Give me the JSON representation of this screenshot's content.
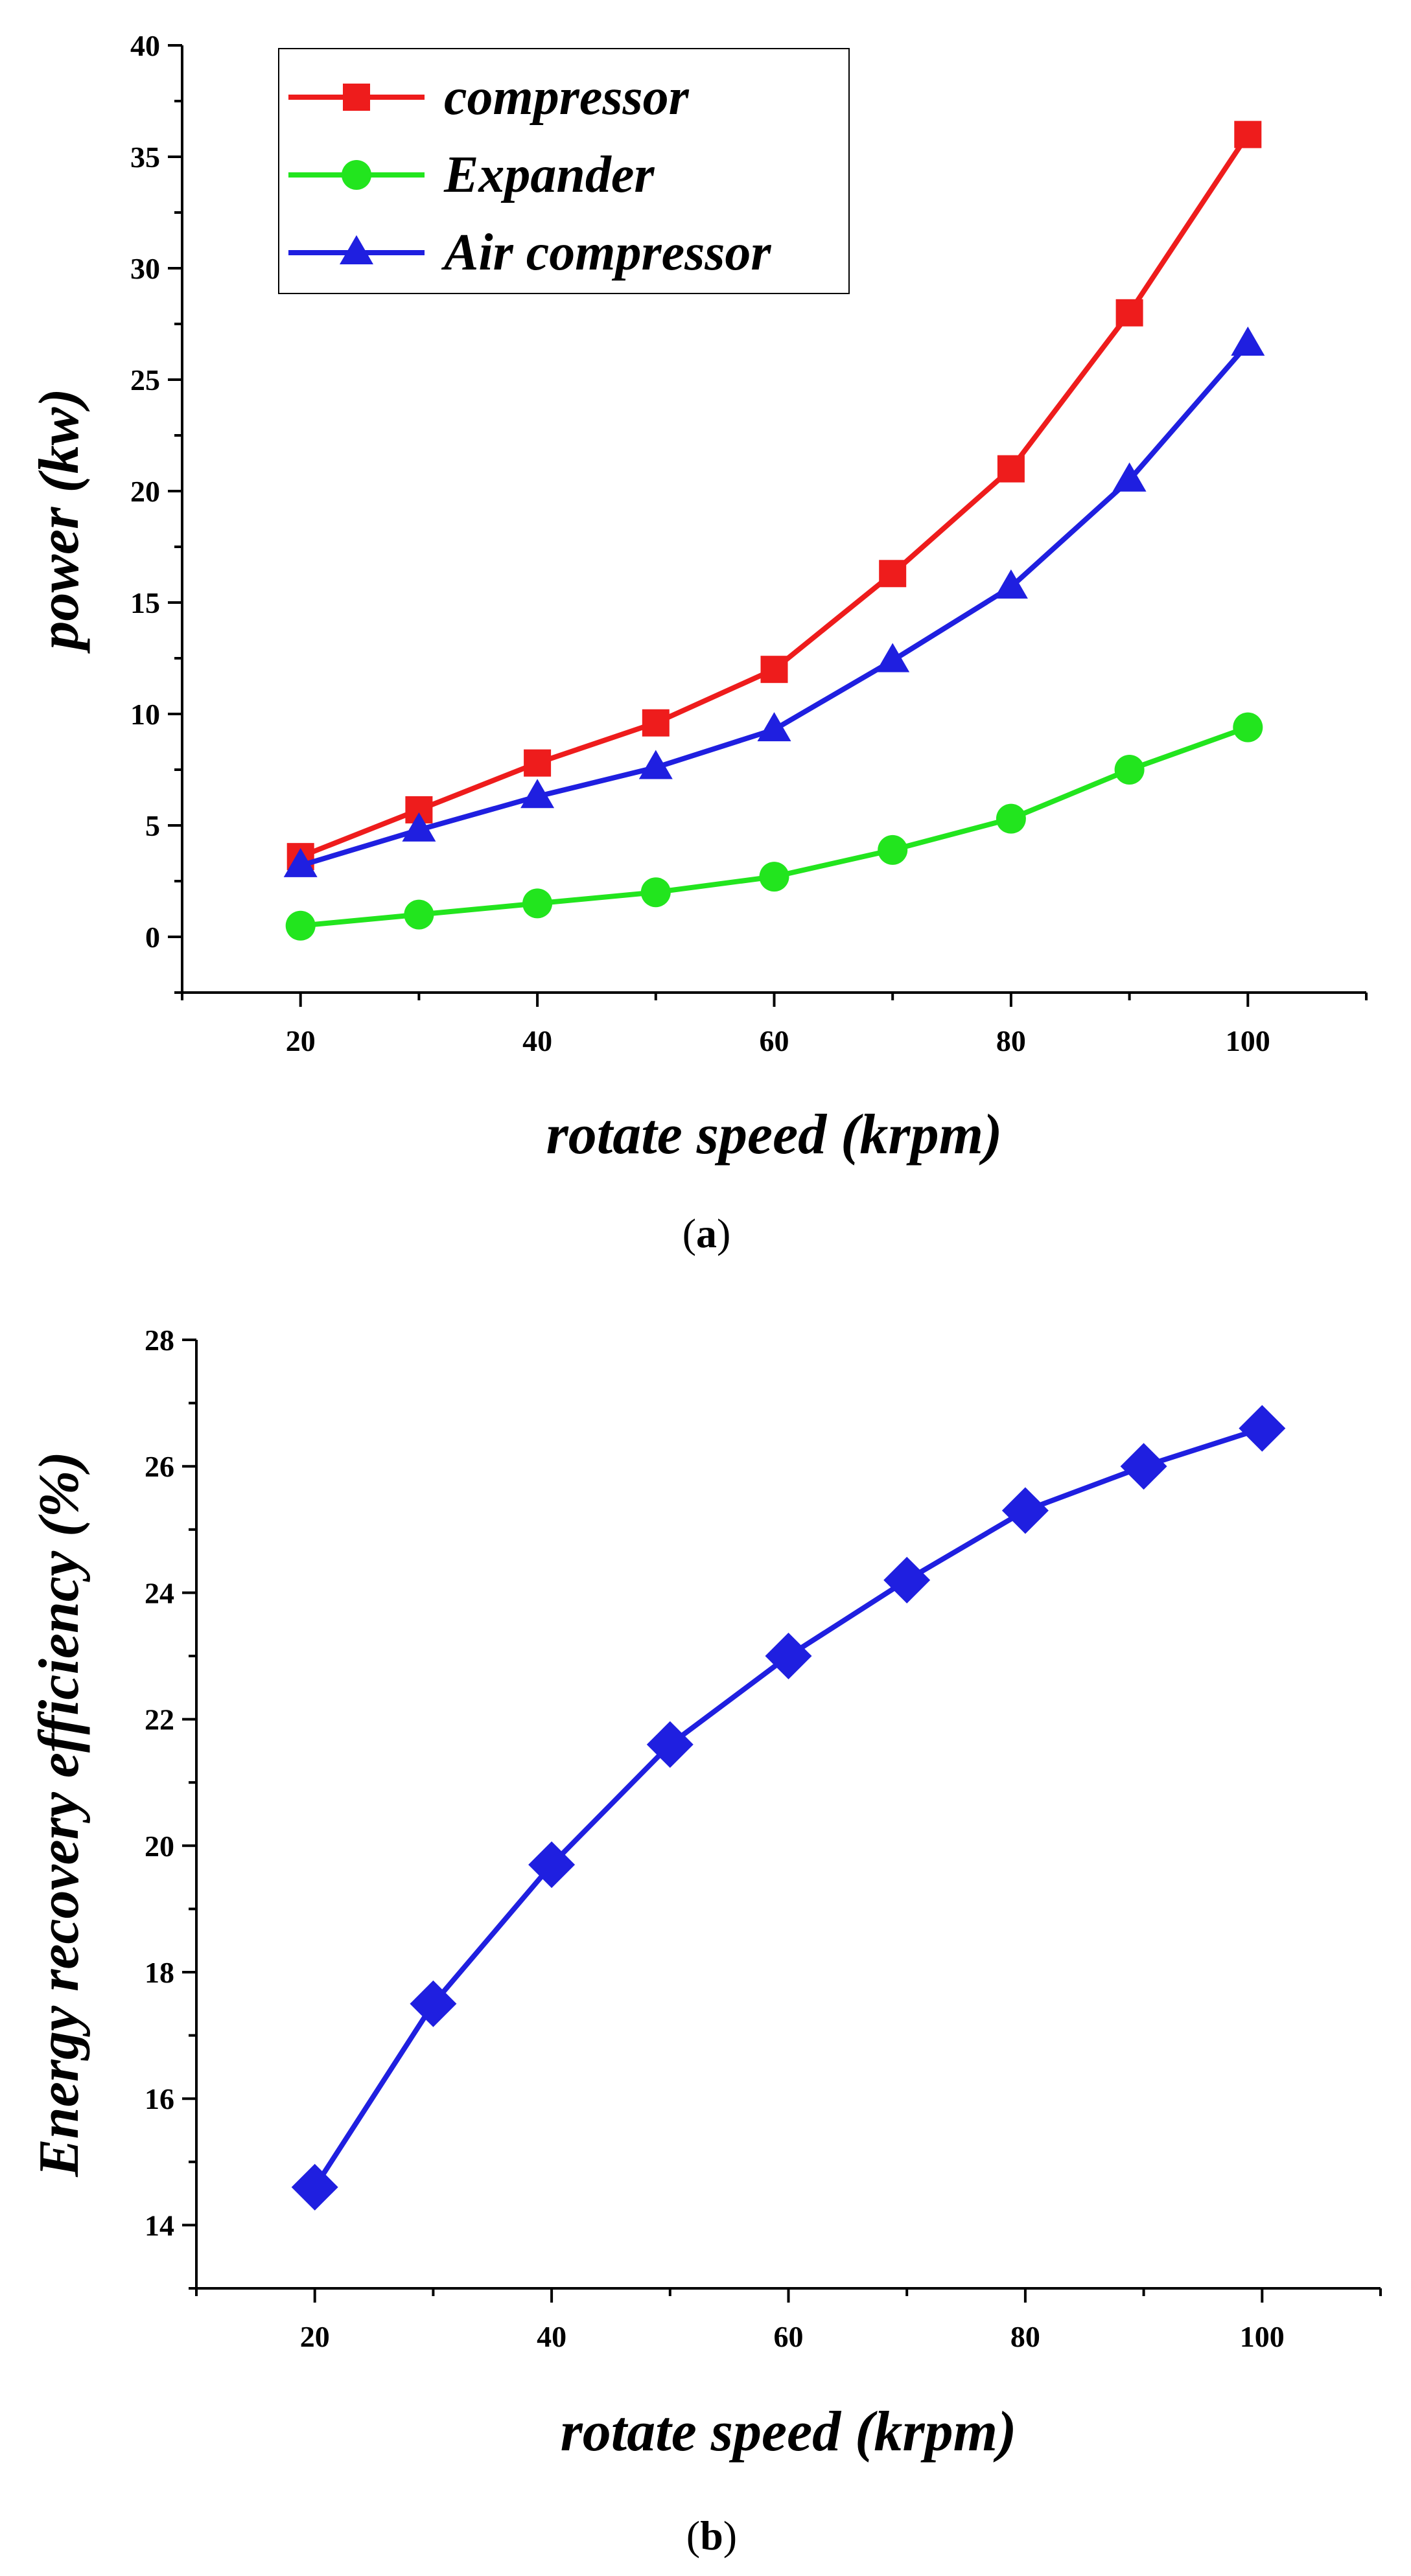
{
  "chart_data": [
    {
      "type": "line",
      "caption": "a",
      "title": "",
      "xlabel": "rotate speed (krpm)",
      "ylabel": "power (kw)",
      "xlim": [
        10,
        110
      ],
      "ylim": [
        -2.5,
        40
      ],
      "xticks": [
        20,
        40,
        60,
        80,
        100
      ],
      "yticks": [
        0,
        5,
        10,
        15,
        20,
        25,
        30,
        35,
        40
      ],
      "grid": false,
      "legend_position": "top-left",
      "x": [
        20,
        30,
        40,
        50,
        60,
        70,
        80,
        90,
        100
      ],
      "series": [
        {
          "name": "compressor",
          "color": "#ee1c1c",
          "marker": "square",
          "values": [
            3.6,
            5.7,
            7.8,
            9.6,
            12.0,
            16.3,
            21.0,
            28.0,
            36.0
          ]
        },
        {
          "name": "Expander",
          "color": "#22e51e",
          "marker": "circle",
          "values": [
            0.5,
            1.0,
            1.5,
            2.0,
            2.7,
            3.9,
            5.3,
            7.5,
            9.4
          ]
        },
        {
          "name": "Air compressor",
          "color": "#1f1fe0",
          "marker": "triangle",
          "values": [
            3.2,
            4.8,
            6.3,
            7.6,
            9.3,
            12.4,
            15.7,
            20.5,
            26.6
          ]
        }
      ]
    },
    {
      "type": "line",
      "caption": "b",
      "title": "",
      "xlabel": "rotate speed (krpm)",
      "ylabel": "Energy recovery efficiency (%)",
      "xlim": [
        10,
        110
      ],
      "ylim": [
        13,
        28
      ],
      "xticks": [
        20,
        40,
        60,
        80,
        100
      ],
      "yticks": [
        14,
        16,
        18,
        20,
        22,
        24,
        26,
        28
      ],
      "grid": false,
      "x": [
        20,
        30,
        40,
        50,
        60,
        70,
        80,
        90,
        100
      ],
      "series": [
        {
          "name": "Energy recovery efficiency",
          "color": "#1f1fe0",
          "marker": "diamond",
          "values": [
            14.6,
            17.5,
            19.7,
            21.6,
            23.0,
            24.2,
            25.3,
            26.0,
            26.6
          ]
        }
      ]
    }
  ]
}
